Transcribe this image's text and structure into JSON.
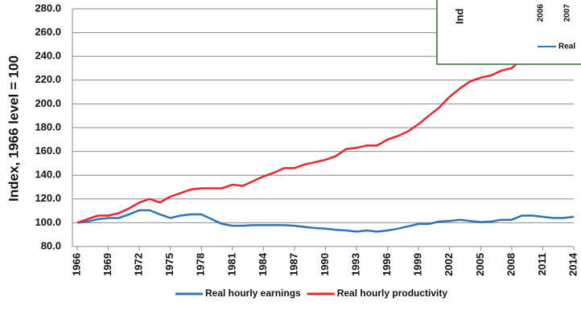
{
  "chart_data": {
    "type": "line",
    "y_label": "Index, 1966 level = 100",
    "x": [
      1966,
      1967,
      1968,
      1969,
      1970,
      1971,
      1972,
      1973,
      1974,
      1975,
      1976,
      1977,
      1978,
      1979,
      1980,
      1981,
      1982,
      1983,
      1984,
      1985,
      1986,
      1987,
      1988,
      1989,
      1990,
      1991,
      1992,
      1993,
      1994,
      1995,
      1996,
      1997,
      1998,
      1999,
      2000,
      2001,
      2002,
      2003,
      2004,
      2005,
      2006,
      2007,
      2008,
      2009,
      2010,
      2011,
      2012,
      2013,
      2014
    ],
    "series": [
      {
        "name": "Real hourly earnings",
        "color": "#2e75b6",
        "values": [
          100,
          101,
          103,
          104,
          104,
          107,
          110.5,
          110.5,
          107,
          104,
          106,
          107,
          107,
          103,
          99,
          97.5,
          97.5,
          98,
          98,
          98,
          98,
          97.5,
          96.5,
          95.5,
          95,
          94,
          93.5,
          92.5,
          93.5,
          92.5,
          93.5,
          95,
          97,
          99,
          99,
          101,
          101.5,
          102.5,
          101.5,
          100.5,
          101,
          102.5,
          102.5,
          106,
          106,
          105,
          104,
          104,
          105
        ]
      },
      {
        "name": "Real hourly productivity",
        "color": "#e8262b",
        "values": [
          100,
          103,
          106,
          106,
          108,
          112,
          117,
          120,
          117,
          122,
          125,
          128,
          129,
          129,
          129,
          132,
          131,
          135,
          139,
          142,
          146,
          146,
          149,
          151,
          153,
          156,
          162,
          163,
          165,
          165,
          170,
          173,
          177,
          183,
          190,
          197,
          206,
          213,
          219,
          222,
          224,
          228,
          230,
          238,
          246,
          248,
          250,
          252,
          255
        ]
      }
    ],
    "xlim": [
      1966,
      2014
    ],
    "xticks": [
      1966,
      1969,
      1972,
      1975,
      1978,
      1981,
      1984,
      1987,
      1990,
      1993,
      1996,
      1999,
      2002,
      2005,
      2008,
      2011,
      2014
    ],
    "ylim": [
      80,
      280
    ],
    "yticks": [
      {
        "value": 80,
        "label": "80.0"
      },
      {
        "value": 100,
        "label": "100.0"
      },
      {
        "value": 120,
        "label": "120.0"
      },
      {
        "value": 140,
        "label": "140.0"
      },
      {
        "value": 160,
        "label": "160.0"
      },
      {
        "value": 180,
        "label": "180.0"
      },
      {
        "value": 200,
        "label": "200.0"
      },
      {
        "value": 220,
        "label": "220.0"
      },
      {
        "value": 240,
        "label": "240.0"
      },
      {
        "value": 260,
        "label": "260.0"
      },
      {
        "value": 280,
        "label": "280.0"
      }
    ],
    "grid": true,
    "legend": "bottom",
    "inset": {
      "title": "Ind",
      "categories": [
        "2006",
        "2007"
      ],
      "legend": "Real"
    }
  }
}
